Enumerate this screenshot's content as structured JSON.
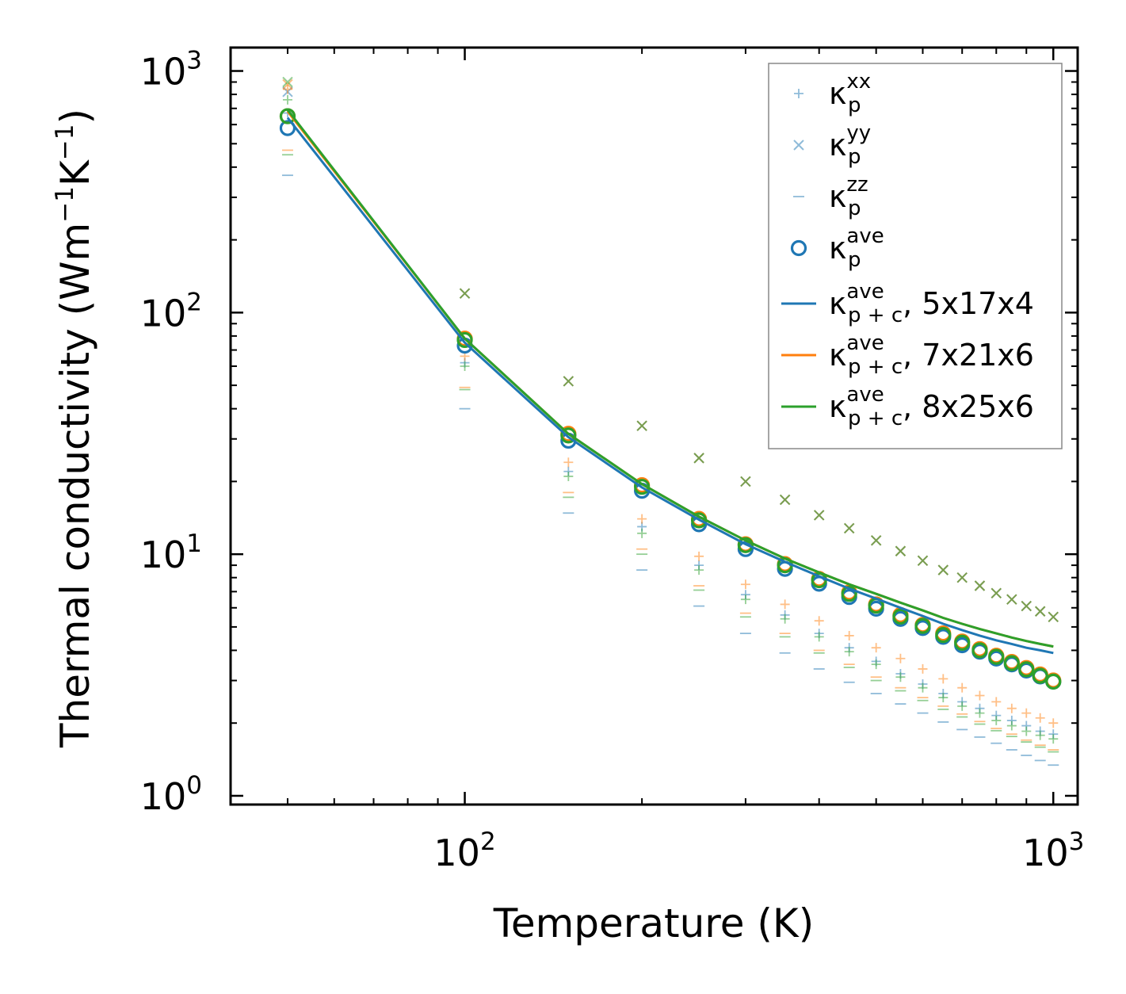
{
  "chart_data": {
    "type": "scatter",
    "xscale": "log",
    "yscale": "log",
    "xlim": [
      40,
      1100
    ],
    "ylim": [
      0.92,
      1250
    ],
    "xlabel": "Temperature (K)",
    "ylabel_main": "Thermal conductivity (Wm",
    "ylabel_sup1": "−1",
    "ylabel_mid": "K",
    "ylabel_sup2": "−1",
    "ylabel_end": ")",
    "x_ticks": [
      {
        "value": 100,
        "base": "10",
        "exp": "2"
      },
      {
        "value": 1000,
        "base": "10",
        "exp": "3"
      }
    ],
    "y_ticks": [
      {
        "value": 1,
        "base": "10",
        "exp": "0"
      },
      {
        "value": 10,
        "base": "10",
        "exp": "1"
      },
      {
        "value": 100,
        "base": "10",
        "exp": "2"
      },
      {
        "value": 1000,
        "base": "10",
        "exp": "3"
      }
    ],
    "temperatures": [
      50,
      100,
      150,
      200,
      250,
      300,
      350,
      400,
      450,
      500,
      550,
      600,
      650,
      700,
      750,
      800,
      850,
      900,
      950,
      1000
    ],
    "meshes": [
      {
        "name": "5x17x4",
        "color": "#1f77b4",
        "kxx": [
          670,
          62,
          22,
          13,
          9.0,
          6.8,
          5.6,
          4.7,
          4.1,
          3.6,
          3.2,
          2.9,
          2.65,
          2.45,
          2.3,
          2.15,
          2.05,
          1.95,
          1.85,
          1.8
        ],
        "kyy": [
          820,
          120,
          52,
          34,
          25,
          20,
          16.8,
          14.5,
          12.8,
          11.4,
          10.3,
          9.4,
          8.6,
          8.0,
          7.4,
          6.9,
          6.5,
          6.1,
          5.8,
          5.5
        ],
        "kzz": [
          370,
          40,
          14.8,
          8.6,
          6.1,
          4.7,
          3.9,
          3.35,
          2.95,
          2.65,
          2.4,
          2.2,
          2.02,
          1.88,
          1.75,
          1.65,
          1.55,
          1.47,
          1.4,
          1.34
        ],
        "kave": [
          580,
          73,
          29.5,
          18.3,
          13.3,
          10.5,
          8.7,
          7.55,
          6.65,
          5.95,
          5.4,
          4.95,
          4.55,
          4.2,
          3.95,
          3.7,
          3.5,
          3.3,
          3.12,
          2.97
        ],
        "kpc": [
          640,
          75,
          30.5,
          18.9,
          13.9,
          11.0,
          9.3,
          8.1,
          7.2,
          6.55,
          6.0,
          5.55,
          5.15,
          4.85,
          4.6,
          4.4,
          4.25,
          4.1,
          4.0,
          3.9
        ]
      },
      {
        "name": "7x21x6",
        "color": "#ff7f0e",
        "kxx": [
          840,
          66,
          24,
          14,
          9.8,
          7.5,
          6.2,
          5.3,
          4.6,
          4.1,
          3.7,
          3.35,
          3.05,
          2.8,
          2.6,
          2.45,
          2.3,
          2.2,
          2.1,
          2.0
        ],
        "kyy": [
          880,
          120,
          52,
          34,
          25,
          20,
          16.8,
          14.5,
          12.8,
          11.4,
          10.3,
          9.4,
          8.6,
          8.0,
          7.4,
          6.9,
          6.5,
          6.1,
          5.8,
          5.5
        ],
        "kzz": [
          470,
          49,
          18,
          10.5,
          7.4,
          5.7,
          4.7,
          4.0,
          3.5,
          3.1,
          2.8,
          2.55,
          2.35,
          2.18,
          2.03,
          1.9,
          1.8,
          1.7,
          1.62,
          1.55
        ],
        "kave": [
          650,
          78,
          31.5,
          19.3,
          14.0,
          11.0,
          9.1,
          7.9,
          6.95,
          6.2,
          5.6,
          5.1,
          4.7,
          4.35,
          4.05,
          3.8,
          3.58,
          3.38,
          3.18,
          3.0
        ],
        "kpc": [
          680,
          78,
          31.5,
          19.5,
          14.3,
          11.4,
          9.6,
          8.4,
          7.5,
          6.85,
          6.3,
          5.85,
          5.45,
          5.15,
          4.9,
          4.7,
          4.52,
          4.37,
          4.25,
          4.15
        ]
      },
      {
        "name": "8x25x6",
        "color": "#2ca02c",
        "kxx": [
          760,
          60,
          21,
          12.2,
          8.6,
          6.5,
          5.4,
          4.55,
          3.95,
          3.5,
          3.1,
          2.8,
          2.55,
          2.35,
          2.2,
          2.05,
          1.95,
          1.85,
          1.78,
          1.72
        ],
        "kyy": [
          900,
          120,
          52,
          34,
          25,
          20,
          16.8,
          14.5,
          12.8,
          11.4,
          10.3,
          9.4,
          8.6,
          8.0,
          7.4,
          6.9,
          6.5,
          6.1,
          5.8,
          5.5
        ],
        "kzz": [
          450,
          48,
          17.2,
          10.0,
          7.1,
          5.5,
          4.55,
          3.9,
          3.4,
          3.0,
          2.72,
          2.48,
          2.28,
          2.12,
          1.98,
          1.86,
          1.76,
          1.67,
          1.59,
          1.52
        ],
        "kave": [
          650,
          77,
          31,
          19.0,
          13.8,
          10.9,
          9.0,
          7.8,
          6.85,
          6.12,
          5.52,
          5.05,
          4.63,
          4.3,
          4.0,
          3.76,
          3.54,
          3.34,
          3.14,
          2.97
        ],
        "kpc": [
          690,
          78,
          31.5,
          19.5,
          14.3,
          11.4,
          9.6,
          8.4,
          7.5,
          6.85,
          6.3,
          5.85,
          5.45,
          5.15,
          4.9,
          4.7,
          4.52,
          4.37,
          4.25,
          4.15
        ]
      }
    ],
    "legend": {
      "placement": "top-right",
      "entries": [
        {
          "symbol": "plus",
          "base": "κ",
          "sup": "xx",
          "sub": "p",
          "suffix": ""
        },
        {
          "symbol": "x",
          "base": "κ",
          "sup": "yy",
          "sub": "p",
          "suffix": ""
        },
        {
          "symbol": "dash",
          "base": "κ",
          "sup": "zz",
          "sub": "p",
          "suffix": ""
        },
        {
          "symbol": "circle",
          "base": "κ",
          "sup": "ave",
          "sub": "p",
          "suffix": ""
        },
        {
          "symbol": "line",
          "color": "#1f77b4",
          "base": "κ",
          "sup": "ave",
          "sub": "p + c",
          "suffix": ", 5x17x4"
        },
        {
          "symbol": "line",
          "color": "#ff7f0e",
          "base": "κ",
          "sup": "ave",
          "sub": "p + c",
          "suffix": ", 7x21x6"
        },
        {
          "symbol": "line",
          "color": "#2ca02c",
          "base": "κ",
          "sup": "ave",
          "sub": "p + c",
          "suffix": ", 8x25x6"
        }
      ]
    }
  }
}
